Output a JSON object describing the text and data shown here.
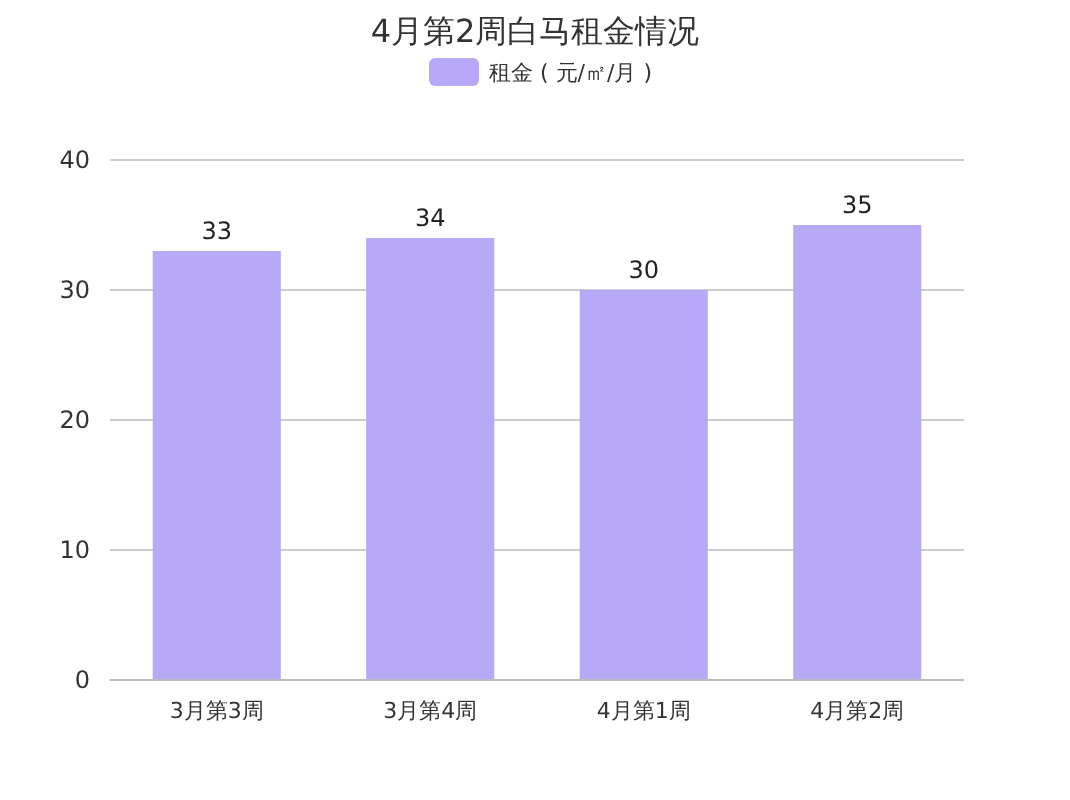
{
  "chart_data": {
    "type": "bar",
    "title": "4月第2周白马租金情况",
    "categories": [
      "3月第3周",
      "3月第4周",
      "4月第1周",
      "4月第2周"
    ],
    "series": [
      {
        "name": "租金 ( 元/㎡/月 )",
        "color": "#b7a9f8",
        "values": [
          33,
          34,
          30,
          35
        ]
      }
    ],
    "ylim": [
      0,
      40
    ],
    "yticks": [
      0,
      10,
      20,
      30,
      40
    ],
    "grid": "y",
    "legend": "top",
    "data_labels": true
  }
}
